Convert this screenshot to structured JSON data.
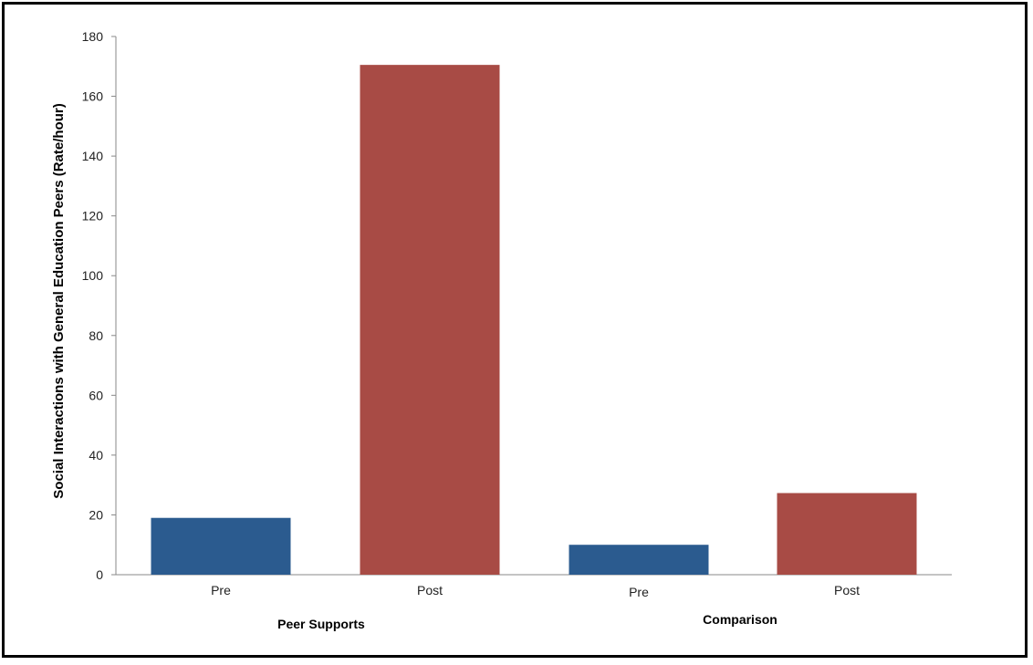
{
  "chart_data": {
    "type": "bar",
    "title": "",
    "ylabel": "Social Interactions with General Education Peers (Rate/hour)",
    "xlabel": "",
    "ylim": [
      0,
      180
    ],
    "yticks": [
      0,
      20,
      40,
      60,
      80,
      100,
      120,
      140,
      160,
      180
    ],
    "grid": false,
    "legend": "none",
    "bars": [
      {
        "label": "Pre",
        "group": "Peer Supports",
        "value": 19,
        "color": "#2b5b8f"
      },
      {
        "label": "Post",
        "group": "Peer Supports",
        "value": 170.5,
        "color": "#a84b45"
      },
      {
        "label": "Pre",
        "group": "Comparison",
        "value": 10,
        "color": "#2b5b8f"
      },
      {
        "label": "Post",
        "group": "Comparison",
        "value": 27.3,
        "color": "#a84b45"
      }
    ],
    "groups": [
      "Peer Supports",
      "Comparison"
    ]
  }
}
